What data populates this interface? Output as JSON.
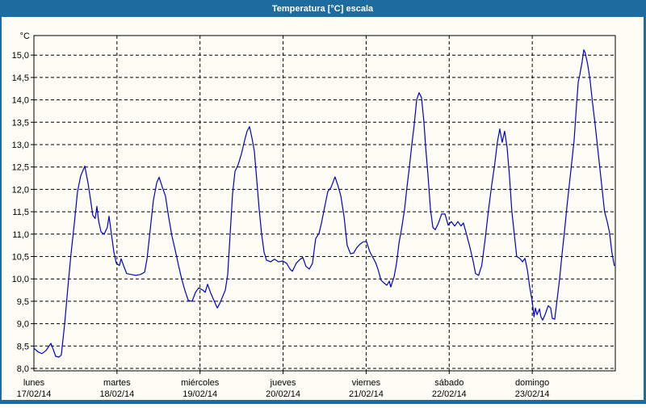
{
  "window": {
    "title": "Temperatura [°C] escala",
    "title_bar_color": "#1e6b9f",
    "background_color": "#fdfdf5"
  },
  "chart_data": {
    "type": "line",
    "title": "Temperatura [°C] escala",
    "grid": true,
    "line_color": "#0000cc",
    "grid_color": "#000000",
    "y_axis": {
      "unit_label": "°C",
      "min": 8.0,
      "max": 15.0,
      "tick_step": 0.5,
      "decimal_separator": ","
    },
    "x_axis": {
      "hours_total": 168,
      "days": [
        {
          "name": "lunes",
          "date": "17/02/14"
        },
        {
          "name": "martes",
          "date": "18/02/14"
        },
        {
          "name": "miércoles",
          "date": "19/02/14"
        },
        {
          "name": "jueves",
          "date": "20/02/14"
        },
        {
          "name": "viernes",
          "date": "21/02/14"
        },
        {
          "name": "sábado",
          "date": "22/02/14"
        },
        {
          "name": "domingo",
          "date": "23/02/14"
        }
      ]
    },
    "series": [
      {
        "name": "Temperatura",
        "unit": "°C",
        "points": [
          [
            0.0,
            8.45
          ],
          [
            1.2,
            8.37
          ],
          [
            2.3,
            8.33
          ],
          [
            3.5,
            8.4
          ],
          [
            4.9,
            8.56
          ],
          [
            5.6,
            8.42
          ],
          [
            6.3,
            8.27
          ],
          [
            7.2,
            8.25
          ],
          [
            7.9,
            8.3
          ],
          [
            8.9,
            9.0
          ],
          [
            9.8,
            9.8
          ],
          [
            10.7,
            10.55
          ],
          [
            11.7,
            11.25
          ],
          [
            12.6,
            11.95
          ],
          [
            13.5,
            12.3
          ],
          [
            14.7,
            12.52
          ],
          [
            15.6,
            12.15
          ],
          [
            16.3,
            11.8
          ],
          [
            17.0,
            11.42
          ],
          [
            17.7,
            11.35
          ],
          [
            18.2,
            11.62
          ],
          [
            18.7,
            11.3
          ],
          [
            19.4,
            11.05
          ],
          [
            20.3,
            11.0
          ],
          [
            21.2,
            11.15
          ],
          [
            21.7,
            11.4
          ],
          [
            22.4,
            11.0
          ],
          [
            23.1,
            10.6
          ],
          [
            23.8,
            10.35
          ],
          [
            24.7,
            10.3
          ],
          [
            25.2,
            10.45
          ],
          [
            25.9,
            10.3
          ],
          [
            26.8,
            10.12
          ],
          [
            28.0,
            10.1
          ],
          [
            29.4,
            10.08
          ],
          [
            30.8,
            10.1
          ],
          [
            32.0,
            10.15
          ],
          [
            32.7,
            10.45
          ],
          [
            33.6,
            11.1
          ],
          [
            34.5,
            11.75
          ],
          [
            35.5,
            12.15
          ],
          [
            36.2,
            12.27
          ],
          [
            37.1,
            12.05
          ],
          [
            38.0,
            11.85
          ],
          [
            38.9,
            11.4
          ],
          [
            39.9,
            10.95
          ],
          [
            40.8,
            10.65
          ],
          [
            41.8,
            10.3
          ],
          [
            42.7,
            10.0
          ],
          [
            43.6,
            9.75
          ],
          [
            44.6,
            9.52
          ],
          [
            45.7,
            9.5
          ],
          [
            46.7,
            9.7
          ],
          [
            47.6,
            9.8
          ],
          [
            48.8,
            9.75
          ],
          [
            49.5,
            9.7
          ],
          [
            50.2,
            9.88
          ],
          [
            51.1,
            9.68
          ],
          [
            52.0,
            9.52
          ],
          [
            53.0,
            9.35
          ],
          [
            53.7,
            9.45
          ],
          [
            54.4,
            9.58
          ],
          [
            55.3,
            9.75
          ],
          [
            56.0,
            10.1
          ],
          [
            56.7,
            11.0
          ],
          [
            57.4,
            11.9
          ],
          [
            58.1,
            12.4
          ],
          [
            59.0,
            12.55
          ],
          [
            60.0,
            12.8
          ],
          [
            60.9,
            13.1
          ],
          [
            61.6,
            13.3
          ],
          [
            62.3,
            13.4
          ],
          [
            63.0,
            13.15
          ],
          [
            63.7,
            12.85
          ],
          [
            64.4,
            12.2
          ],
          [
            65.1,
            11.55
          ],
          [
            65.8,
            11.0
          ],
          [
            66.5,
            10.6
          ],
          [
            67.2,
            10.42
          ],
          [
            68.4,
            10.38
          ],
          [
            69.5,
            10.44
          ],
          [
            70.7,
            10.38
          ],
          [
            71.9,
            10.4
          ],
          [
            73.0,
            10.35
          ],
          [
            74.0,
            10.22
          ],
          [
            74.7,
            10.17
          ],
          [
            75.8,
            10.35
          ],
          [
            76.8,
            10.43
          ],
          [
            77.7,
            10.48
          ],
          [
            78.6,
            10.28
          ],
          [
            79.6,
            10.22
          ],
          [
            80.5,
            10.35
          ],
          [
            81.4,
            10.9
          ],
          [
            82.4,
            11.02
          ],
          [
            83.1,
            11.25
          ],
          [
            84.0,
            11.6
          ],
          [
            84.9,
            11.95
          ],
          [
            85.9,
            12.05
          ],
          [
            87.0,
            12.28
          ],
          [
            88.0,
            12.05
          ],
          [
            88.7,
            11.85
          ],
          [
            89.6,
            11.4
          ],
          [
            90.5,
            10.75
          ],
          [
            91.5,
            10.56
          ],
          [
            92.4,
            10.58
          ],
          [
            93.3,
            10.7
          ],
          [
            94.3,
            10.78
          ],
          [
            95.2,
            10.83
          ],
          [
            96.1,
            10.83
          ],
          [
            97.0,
            10.62
          ],
          [
            97.8,
            10.5
          ],
          [
            98.7,
            10.37
          ],
          [
            99.4,
            10.22
          ],
          [
            100.3,
            9.97
          ],
          [
            101.3,
            9.9
          ],
          [
            102.0,
            9.86
          ],
          [
            102.7,
            9.95
          ],
          [
            103.1,
            9.82
          ],
          [
            104.1,
            10.05
          ],
          [
            104.8,
            10.35
          ],
          [
            105.5,
            10.8
          ],
          [
            106.2,
            11.1
          ],
          [
            107.1,
            11.55
          ],
          [
            107.8,
            12.05
          ],
          [
            108.5,
            12.5
          ],
          [
            109.2,
            13.0
          ],
          [
            109.9,
            13.45
          ],
          [
            110.6,
            14.0
          ],
          [
            111.3,
            14.16
          ],
          [
            112.0,
            14.05
          ],
          [
            112.7,
            13.5
          ],
          [
            113.2,
            12.95
          ],
          [
            113.9,
            12.3
          ],
          [
            114.6,
            11.55
          ],
          [
            115.3,
            11.15
          ],
          [
            116.0,
            11.1
          ],
          [
            116.9,
            11.25
          ],
          [
            117.8,
            11.45
          ],
          [
            118.8,
            11.45
          ],
          [
            119.7,
            11.2
          ],
          [
            120.6,
            11.28
          ],
          [
            121.6,
            11.18
          ],
          [
            122.5,
            11.28
          ],
          [
            123.4,
            11.18
          ],
          [
            124.1,
            11.25
          ],
          [
            125.0,
            11.0
          ],
          [
            126.0,
            10.7
          ],
          [
            126.9,
            10.4
          ],
          [
            127.6,
            10.12
          ],
          [
            128.5,
            10.08
          ],
          [
            129.4,
            10.3
          ],
          [
            130.4,
            10.9
          ],
          [
            131.3,
            11.5
          ],
          [
            132.2,
            12.05
          ],
          [
            133.2,
            12.6
          ],
          [
            133.9,
            13.05
          ],
          [
            134.6,
            13.35
          ],
          [
            135.3,
            13.05
          ],
          [
            136.0,
            13.3
          ],
          [
            136.7,
            12.95
          ],
          [
            137.4,
            12.3
          ],
          [
            138.1,
            11.5
          ],
          [
            138.8,
            11.0
          ],
          [
            139.5,
            10.5
          ],
          [
            140.5,
            10.45
          ],
          [
            141.2,
            10.38
          ],
          [
            141.9,
            10.46
          ],
          [
            142.6,
            10.2
          ],
          [
            143.3,
            9.8
          ],
          [
            144.0,
            9.5
          ],
          [
            144.5,
            9.15
          ],
          [
            144.9,
            9.35
          ],
          [
            145.4,
            9.2
          ],
          [
            146.1,
            9.33
          ],
          [
            146.5,
            9.15
          ],
          [
            147.0,
            9.08
          ],
          [
            147.7,
            9.2
          ],
          [
            148.6,
            9.4
          ],
          [
            149.3,
            9.35
          ],
          [
            149.8,
            9.12
          ],
          [
            150.5,
            9.1
          ],
          [
            151.2,
            9.55
          ],
          [
            151.9,
            10.0
          ],
          [
            152.6,
            10.55
          ],
          [
            153.3,
            11.05
          ],
          [
            154.0,
            11.6
          ],
          [
            154.7,
            12.1
          ],
          [
            155.4,
            12.6
          ],
          [
            156.1,
            13.1
          ],
          [
            156.8,
            13.9
          ],
          [
            157.3,
            14.4
          ],
          [
            157.7,
            14.55
          ],
          [
            158.4,
            14.85
          ],
          [
            158.9,
            15.12
          ],
          [
            159.3,
            15.05
          ],
          [
            160.0,
            14.8
          ],
          [
            160.7,
            14.45
          ],
          [
            161.4,
            13.95
          ],
          [
            162.1,
            13.5
          ],
          [
            162.8,
            13.0
          ],
          [
            163.5,
            12.5
          ],
          [
            164.2,
            12.0
          ],
          [
            164.9,
            11.5
          ],
          [
            165.6,
            11.3
          ],
          [
            166.3,
            11.05
          ],
          [
            167.0,
            10.6
          ],
          [
            167.7,
            10.3
          ]
        ]
      }
    ]
  }
}
